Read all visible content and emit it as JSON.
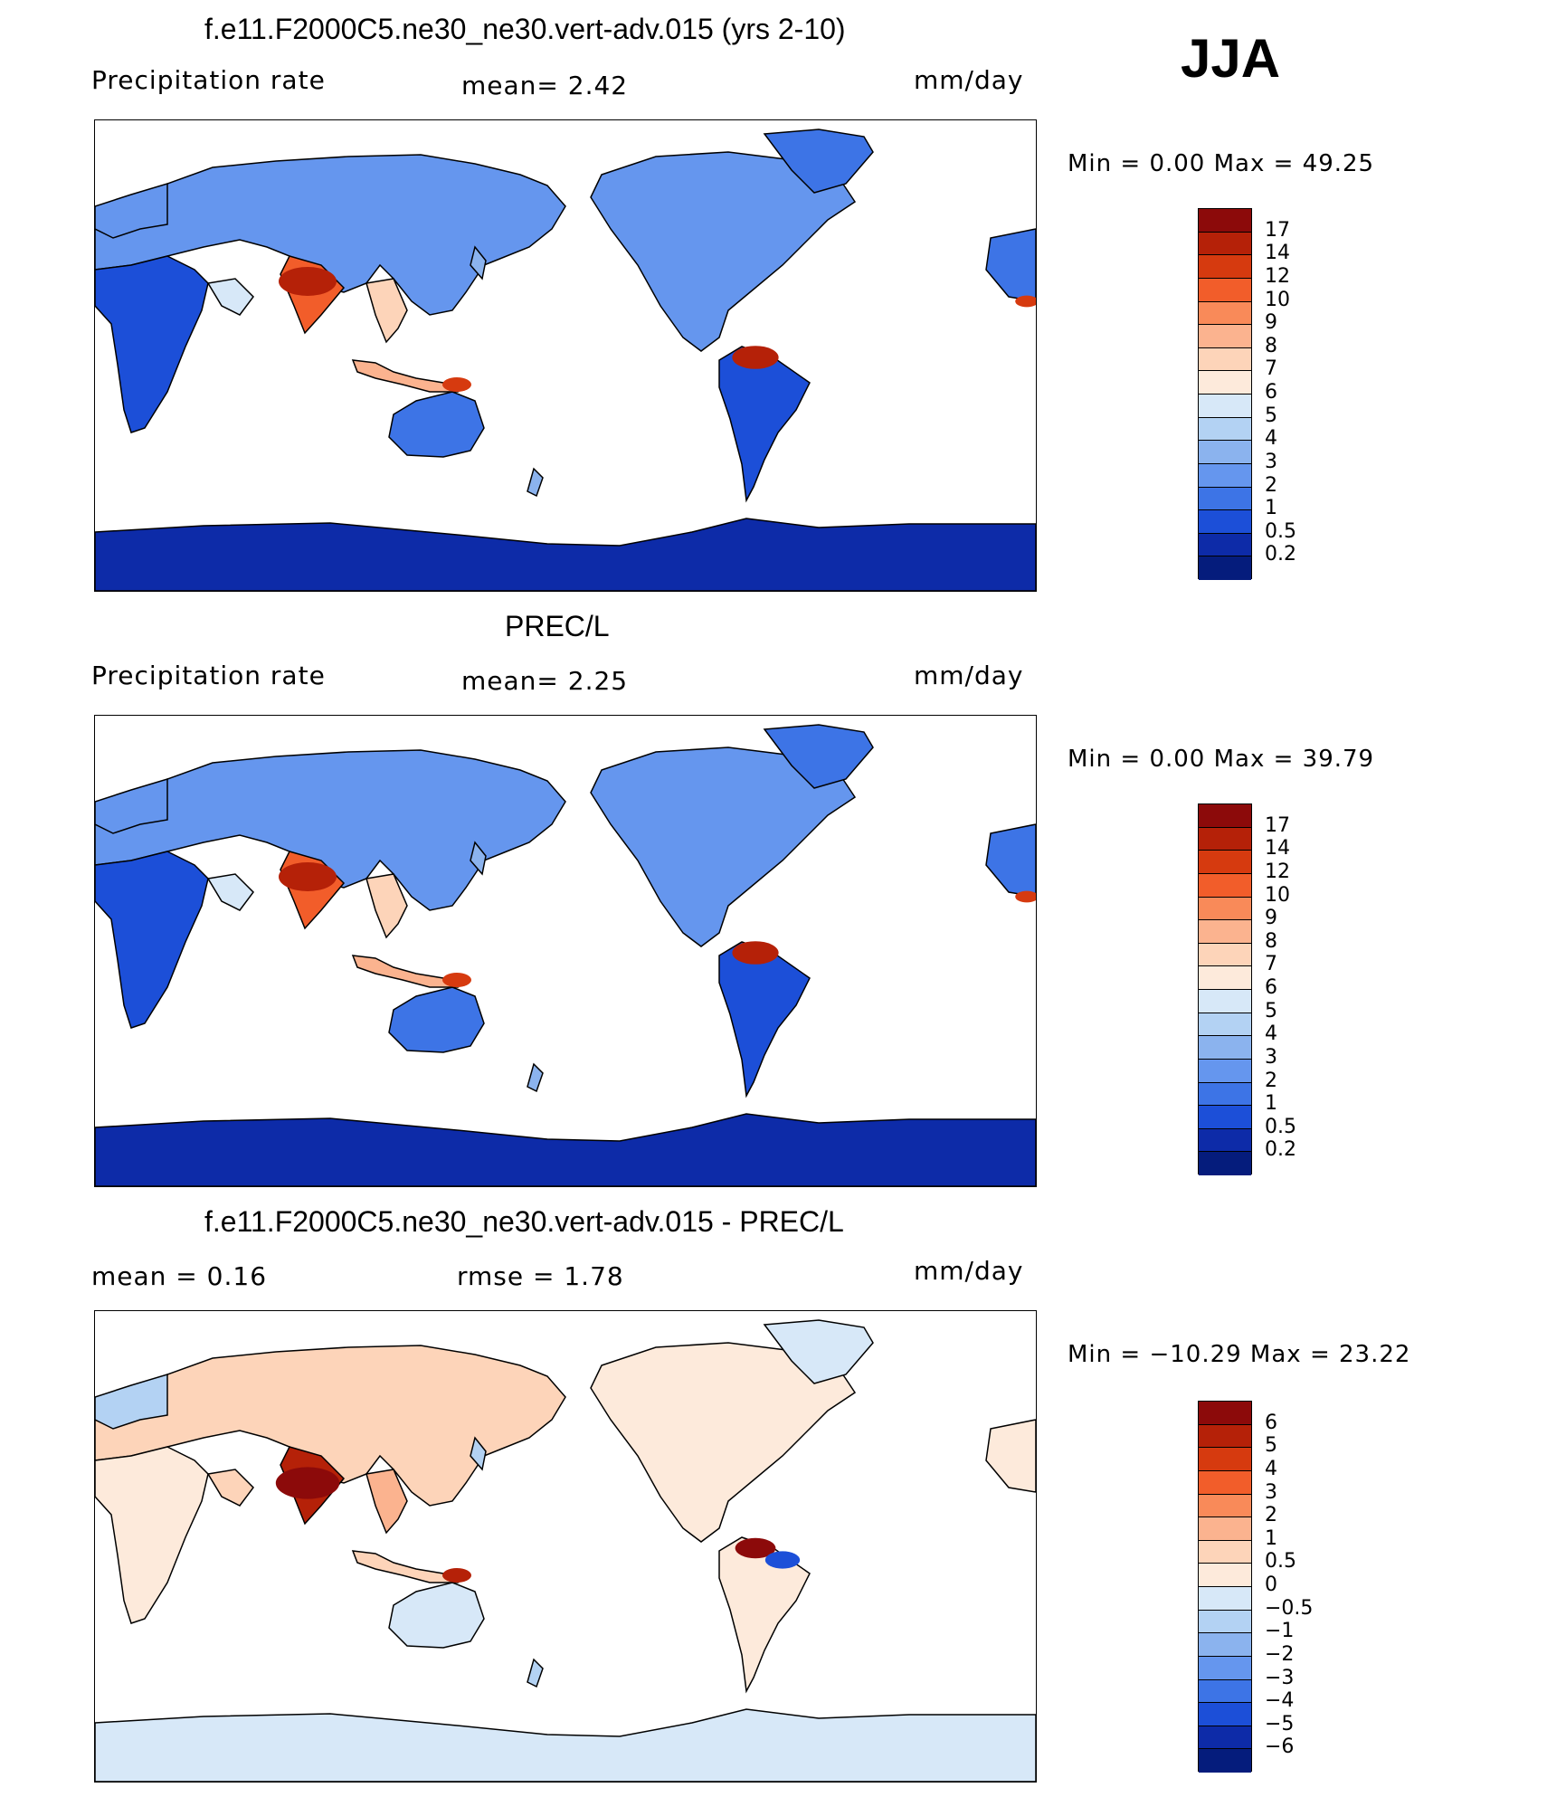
{
  "season": "JJA",
  "panels": [
    {
      "title": "f.e11.F2000C5.ne30_ne30.vert-adv.015 (yrs 2-10)",
      "left_label": "Precipitation  rate",
      "middle_label": "mean=    2.42",
      "units": "mm/day",
      "minmax": "Min  =     0.00  Max  =    49.25",
      "colorbar_ticks": [
        "17",
        "14",
        "12",
        "10",
        "9",
        "8",
        "7",
        "6",
        "5",
        "4",
        "3",
        "2",
        "1",
        "0.5",
        "0.2"
      ],
      "colorbar_colors": [
        "#8c0a0a",
        "#b52108",
        "#d63a0f",
        "#f25d2a",
        "#f98a59",
        "#fbb38f",
        "#fdd4b9",
        "#fdeadb",
        "#d7e8f8",
        "#b3d2f3",
        "#8bb3ee",
        "#6596ee",
        "#3d74e6",
        "#1c4fd8",
        "#0d2ba8",
        "#051c7c"
      ],
      "style": "precip"
    },
    {
      "title": "PREC/L",
      "left_label": "Precipitation  rate",
      "middle_label": "mean=    2.25",
      "units": "mm/day",
      "minmax": "Min  =     0.00  Max  =    39.79",
      "colorbar_ticks": [
        "17",
        "14",
        "12",
        "10",
        "9",
        "8",
        "7",
        "6",
        "5",
        "4",
        "3",
        "2",
        "1",
        "0.5",
        "0.2"
      ],
      "colorbar_colors": [
        "#8c0a0a",
        "#b52108",
        "#d63a0f",
        "#f25d2a",
        "#f98a59",
        "#fbb38f",
        "#fdd4b9",
        "#fdeadb",
        "#d7e8f8",
        "#b3d2f3",
        "#8bb3ee",
        "#6596ee",
        "#3d74e6",
        "#1c4fd8",
        "#0d2ba8",
        "#051c7c"
      ],
      "style": "precip"
    },
    {
      "title": "f.e11.F2000C5.ne30_ne30.vert-adv.015 - PREC/L",
      "left_label": "mean  =     0.16",
      "middle_label": "rmse  =     1.78",
      "units": "mm/day",
      "minmax": "Min  = −10.29  Max  =    23.22",
      "colorbar_ticks": [
        "6",
        "5",
        "4",
        "3",
        "2",
        "1",
        "0.5",
        "0",
        "−0.5",
        "−1",
        "−2",
        "−3",
        "−4",
        "−5",
        "−6"
      ],
      "colorbar_colors": [
        "#8c0a0a",
        "#b52108",
        "#d63a0f",
        "#f25d2a",
        "#f98a59",
        "#fbb38f",
        "#fdd4b9",
        "#fdeadb",
        "#d7e8f8",
        "#b3d2f3",
        "#8bb3ee",
        "#6596ee",
        "#3d74e6",
        "#1c4fd8",
        "#0d2ba8",
        "#051c7c"
      ],
      "style": "diff"
    }
  ]
}
